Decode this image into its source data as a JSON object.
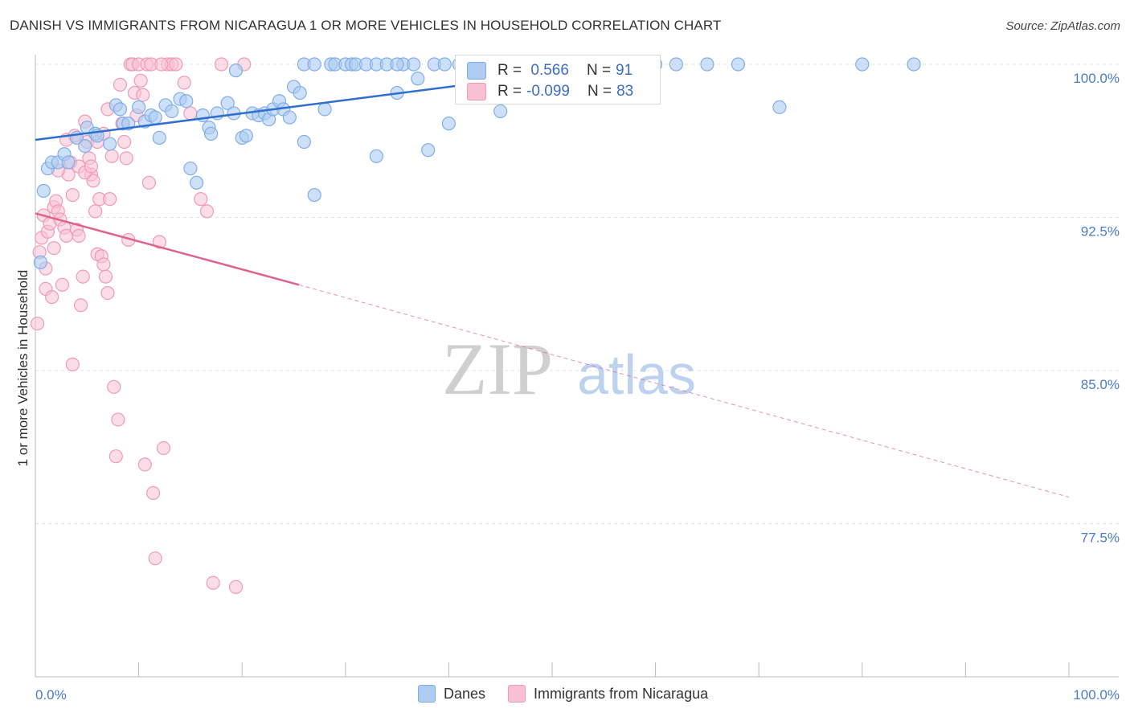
{
  "title": "DANISH VS IMMIGRANTS FROM NICARAGUA 1 OR MORE VEHICLES IN HOUSEHOLD CORRELATION CHART",
  "source": "Source: ZipAtlas.com",
  "watermark": {
    "zip": "ZIP",
    "atlas": "atlas"
  },
  "colors": {
    "danes": "#7eaee8",
    "danes_fill": "#aecbf2",
    "danes_line": "#2f6fcf",
    "nicaragua": "#f09ab8",
    "nicaragua_fill": "#f7c1d3",
    "nicaragua_line": "#e0628f",
    "axis_text": "#4a7cc9",
    "grid": "#e3e3e3"
  },
  "stats": {
    "danes": {
      "r_label": "R =",
      "r_value": " 0.566",
      "n_label": "N =",
      "n_value": "91"
    },
    "nicaragua": {
      "r_label": "R =",
      "r_value": "-0.099",
      "n_label": "N =",
      "n_value": "83"
    }
  },
  "chart_data": {
    "type": "scatter",
    "xlabel": "",
    "ylabel": "1 or more Vehicles in Household",
    "xlim": [
      0,
      100
    ],
    "ylim": [
      70,
      100.8
    ],
    "x_tick_labels": [
      "0.0%",
      "100.0%"
    ],
    "y_ticks": [
      77.5,
      85.0,
      92.5,
      100.0
    ],
    "y_tick_labels": [
      "77.5%",
      "85.0%",
      "92.5%",
      "100.0%"
    ],
    "legend": [
      "Danes",
      "Immigrants from Nicaragua"
    ],
    "series": [
      {
        "name": "Danes",
        "trend": {
          "x": [
            0,
            57
          ],
          "y": [
            96.3,
            100.0
          ]
        },
        "points": [
          [
            0.5,
            90.3
          ],
          [
            0.8,
            93.8
          ],
          [
            1.2,
            94.9
          ],
          [
            1.6,
            95.2
          ],
          [
            2.2,
            95.2
          ],
          [
            2.8,
            95.6
          ],
          [
            3.2,
            95.2
          ],
          [
            4.0,
            96.4
          ],
          [
            4.8,
            96.0
          ],
          [
            5.0,
            96.9
          ],
          [
            5.8,
            96.6
          ],
          [
            6.0,
            96.5
          ],
          [
            7.2,
            96.1
          ],
          [
            7.8,
            98.0
          ],
          [
            8.2,
            97.8
          ],
          [
            8.5,
            97.1
          ],
          [
            9.0,
            97.1
          ],
          [
            10.0,
            97.9
          ],
          [
            10.6,
            97.2
          ],
          [
            11.2,
            97.5
          ],
          [
            11.6,
            97.4
          ],
          [
            12.0,
            96.4
          ],
          [
            12.6,
            98.0
          ],
          [
            13.2,
            97.7
          ],
          [
            14.0,
            98.3
          ],
          [
            14.6,
            98.2
          ],
          [
            15.0,
            94.9
          ],
          [
            15.6,
            94.2
          ],
          [
            16.2,
            97.5
          ],
          [
            16.8,
            96.9
          ],
          [
            17.0,
            96.6
          ],
          [
            17.6,
            97.6
          ],
          [
            18.6,
            98.1
          ],
          [
            19.2,
            97.6
          ],
          [
            19.4,
            99.7
          ],
          [
            20.0,
            96.4
          ],
          [
            20.4,
            96.5
          ],
          [
            21.0,
            97.6
          ],
          [
            21.6,
            97.5
          ],
          [
            22.2,
            97.6
          ],
          [
            22.6,
            97.3
          ],
          [
            23.0,
            97.8
          ],
          [
            23.6,
            98.2
          ],
          [
            24.0,
            97.8
          ],
          [
            24.6,
            97.4
          ],
          [
            25.0,
            98.9
          ],
          [
            25.6,
            98.6
          ],
          [
            26.0,
            100
          ],
          [
            27.0,
            100
          ],
          [
            28.0,
            97.8
          ],
          [
            28.6,
            100
          ],
          [
            29.0,
            100
          ],
          [
            30.0,
            100
          ],
          [
            30.6,
            100
          ],
          [
            31.0,
            100
          ],
          [
            32.0,
            100
          ],
          [
            33.0,
            100
          ],
          [
            34.0,
            100
          ],
          [
            35.0,
            98.6
          ],
          [
            35.6,
            100
          ],
          [
            36.6,
            100
          ],
          [
            37.0,
            99.3
          ],
          [
            38.6,
            100
          ],
          [
            39.6,
            100
          ],
          [
            40.0,
            97.1
          ],
          [
            41.0,
            100
          ],
          [
            42.0,
            100
          ],
          [
            43.0,
            100
          ],
          [
            44.0,
            100
          ],
          [
            45.0,
            100
          ],
          [
            46.0,
            100
          ],
          [
            47.0,
            100
          ],
          [
            48.0,
            100
          ],
          [
            49.0,
            100
          ],
          [
            50.0,
            100
          ],
          [
            52.0,
            100
          ],
          [
            54.0,
            100
          ],
          [
            26.0,
            96.2
          ],
          [
            27.0,
            93.6
          ],
          [
            33.0,
            95.5
          ],
          [
            35.0,
            100
          ],
          [
            38.0,
            95.8
          ],
          [
            44.6,
            99.7
          ],
          [
            45.0,
            97.7
          ],
          [
            56.0,
            100
          ],
          [
            60.0,
            100
          ],
          [
            62.0,
            100
          ],
          [
            65.0,
            100
          ],
          [
            68.0,
            100
          ],
          [
            72.0,
            97.9
          ],
          [
            80.0,
            100
          ],
          [
            85.0,
            100
          ]
        ]
      },
      {
        "name": "Immigrants from Nicaragua",
        "trend": {
          "x": [
            0,
            25.5
          ],
          "y": [
            92.7,
            89.2
          ]
        },
        "trend_extended": {
          "x": [
            25.5,
            100
          ],
          "y": [
            89.2,
            78.8
          ]
        },
        "points": [
          [
            0.2,
            87.3
          ],
          [
            0.4,
            90.8
          ],
          [
            0.6,
            91.5
          ],
          [
            0.8,
            92.6
          ],
          [
            1.0,
            89.0
          ],
          [
            1.2,
            91.8
          ],
          [
            1.4,
            92.2
          ],
          [
            1.6,
            88.6
          ],
          [
            1.8,
            93.0
          ],
          [
            2.0,
            93.3
          ],
          [
            2.2,
            92.8
          ],
          [
            2.4,
            92.4
          ],
          [
            2.6,
            89.2
          ],
          [
            2.8,
            92.0
          ],
          [
            3.0,
            91.6
          ],
          [
            3.2,
            94.6
          ],
          [
            3.4,
            95.2
          ],
          [
            3.6,
            85.3
          ],
          [
            3.8,
            96.5
          ],
          [
            4.0,
            91.9
          ],
          [
            4.2,
            91.6
          ],
          [
            4.4,
            88.2
          ],
          [
            4.6,
            89.6
          ],
          [
            4.8,
            97.2
          ],
          [
            5.0,
            96.2
          ],
          [
            5.2,
            95.4
          ],
          [
            5.4,
            94.6
          ],
          [
            5.6,
            94.3
          ],
          [
            5.8,
            92.8
          ],
          [
            6.0,
            90.7
          ],
          [
            6.2,
            93.4
          ],
          [
            6.4,
            90.6
          ],
          [
            6.6,
            90.2
          ],
          [
            6.8,
            89.6
          ],
          [
            7.0,
            88.8
          ],
          [
            7.2,
            93.4
          ],
          [
            7.4,
            95.5
          ],
          [
            7.6,
            84.2
          ],
          [
            7.8,
            80.8
          ],
          [
            8.0,
            82.6
          ],
          [
            8.2,
            99.0
          ],
          [
            8.4,
            97.1
          ],
          [
            8.6,
            96.2
          ],
          [
            8.8,
            95.4
          ],
          [
            9.0,
            91.4
          ],
          [
            9.2,
            100
          ],
          [
            9.4,
            100
          ],
          [
            9.6,
            98.6
          ],
          [
            9.8,
            97.5
          ],
          [
            10.0,
            100
          ],
          [
            10.2,
            99.2
          ],
          [
            10.4,
            98.5
          ],
          [
            10.6,
            80.4
          ],
          [
            11.0,
            94.2
          ],
          [
            11.4,
            79.0
          ],
          [
            11.6,
            75.8
          ],
          [
            12.0,
            91.3
          ],
          [
            12.4,
            81.2
          ],
          [
            12.8,
            100
          ],
          [
            13.2,
            100
          ],
          [
            13.6,
            100
          ],
          [
            14.4,
            99.1
          ],
          [
            15.0,
            97.6
          ],
          [
            16.0,
            93.4
          ],
          [
            16.6,
            92.8
          ],
          [
            17.2,
            74.6
          ],
          [
            18.0,
            100
          ],
          [
            19.4,
            74.4
          ],
          [
            20.2,
            100
          ],
          [
            1.0,
            90.0
          ],
          [
            1.8,
            91.0
          ],
          [
            2.2,
            94.8
          ],
          [
            3.0,
            96.3
          ],
          [
            3.6,
            93.6
          ],
          [
            4.2,
            95.0
          ],
          [
            4.8,
            94.7
          ],
          [
            5.4,
            95.0
          ],
          [
            6.0,
            96.2
          ],
          [
            6.6,
            96.6
          ],
          [
            7.0,
            97.8
          ],
          [
            10.8,
            100
          ],
          [
            11.2,
            100
          ],
          [
            12.2,
            100
          ]
        ]
      }
    ]
  }
}
